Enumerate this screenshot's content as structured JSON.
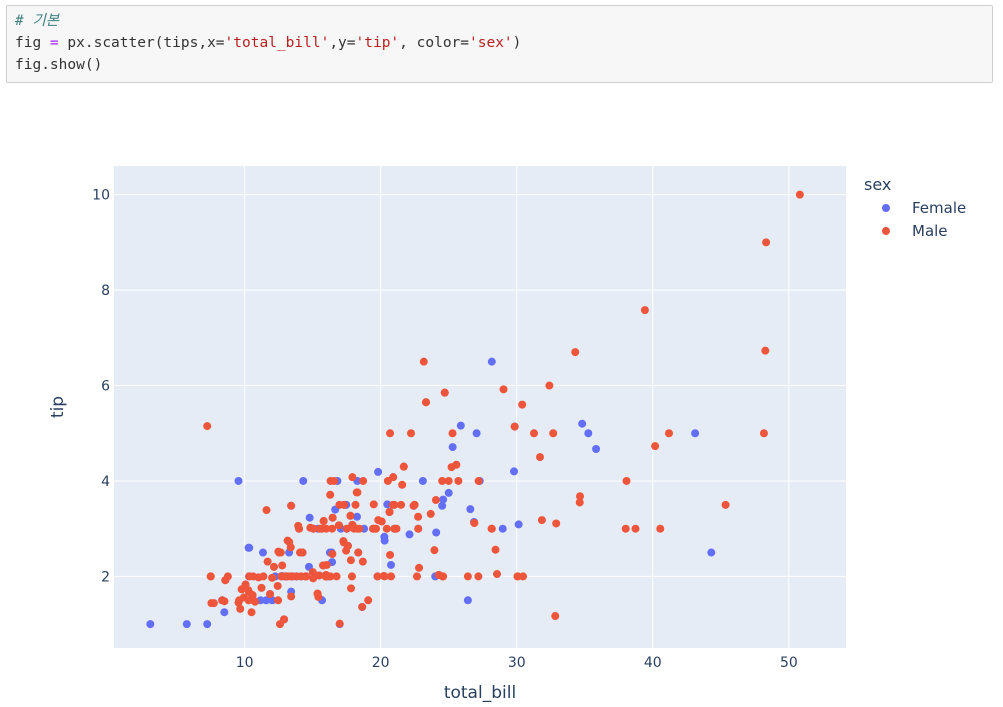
{
  "code": {
    "comment": "# 기본",
    "line2_tokens": [
      {
        "t": "fig",
        "c": "plain"
      },
      {
        "t": " = ",
        "c": "op"
      },
      {
        "t": "px.scatter(tips,x=",
        "c": "plain"
      },
      {
        "t": "'total_bill'",
        "c": "str"
      },
      {
        "t": ",y=",
        "c": "plain"
      },
      {
        "t": "'tip'",
        "c": "str"
      },
      {
        "t": ", color=",
        "c": "plain"
      },
      {
        "t": "'sex'",
        "c": "str"
      },
      {
        "t": ")",
        "c": "plain"
      }
    ],
    "line3": "fig.show()"
  },
  "chart_data": {
    "type": "scatter",
    "xlabel": "total_bill",
    "ylabel": "tip",
    "xlim": [
      0.4,
      54.2
    ],
    "ylim": [
      0.5,
      10.6
    ],
    "x_ticks": [
      10,
      20,
      30,
      40,
      50
    ],
    "y_ticks": [
      2,
      4,
      6,
      8,
      10
    ],
    "grid": true,
    "plot_bg": "#e5ecf6",
    "legend": {
      "title": "sex",
      "position": "right"
    },
    "series": [
      {
        "name": "Female",
        "color": "#636efa",
        "points": [
          [
            3.07,
            1.0
          ],
          [
            5.75,
            1.0
          ],
          [
            7.25,
            1.0
          ],
          [
            8.35,
            1.5
          ],
          [
            8.51,
            1.25
          ],
          [
            9.55,
            4.0
          ],
          [
            10.07,
            1.83
          ],
          [
            10.33,
            2.0
          ],
          [
            10.34,
            2.6
          ],
          [
            10.65,
            1.5
          ],
          [
            11.17,
            1.5
          ],
          [
            11.35,
            2.5
          ],
          [
            11.59,
            1.5
          ],
          [
            12.26,
            2.0
          ],
          [
            12.54,
            2.5
          ],
          [
            12.9,
            1.1
          ],
          [
            13.03,
            2.0
          ],
          [
            13.13,
            2.0
          ],
          [
            13.27,
            2.5
          ],
          [
            13.42,
            3.48
          ],
          [
            13.42,
            1.68
          ],
          [
            13.51,
            2.0
          ],
          [
            14.26,
            2.5
          ],
          [
            14.31,
            4.0
          ],
          [
            14.52,
            2.0
          ],
          [
            14.73,
            2.2
          ],
          [
            15.06,
            3.0
          ],
          [
            15.38,
            3.0
          ],
          [
            16.0,
            2.0
          ],
          [
            16.21,
            2.0
          ],
          [
            16.27,
            2.5
          ],
          [
            16.4,
            2.5
          ],
          [
            16.43,
            2.3
          ],
          [
            16.47,
            3.23
          ],
          [
            16.93,
            3.07
          ],
          [
            16.99,
            1.0
          ],
          [
            17.07,
            3.0
          ],
          [
            17.31,
            3.5
          ],
          [
            17.51,
            3.0
          ],
          [
            17.59,
            2.64
          ],
          [
            17.78,
            3.27
          ],
          [
            18.26,
            3.25
          ],
          [
            18.64,
            1.36
          ],
          [
            18.78,
            3.0
          ],
          [
            19.81,
            4.19
          ],
          [
            20.27,
            2.83
          ],
          [
            20.29,
            2.75
          ],
          [
            20.65,
            3.35
          ],
          [
            20.76,
            2.24
          ],
          [
            20.92,
            4.08
          ],
          [
            21.01,
            3.0
          ],
          [
            22.42,
            3.48
          ],
          [
            22.76,
            3.0
          ],
          [
            23.1,
            4.0
          ],
          [
            24.01,
            2.0
          ],
          [
            24.08,
            2.92
          ],
          [
            24.59,
            3.61
          ],
          [
            25.0,
            3.75
          ],
          [
            25.29,
            4.71
          ],
          [
            26.41,
            1.5
          ],
          [
            26.86,
            3.14
          ],
          [
            28.17,
            6.5
          ],
          [
            29.85,
            5.14
          ],
          [
            30.14,
            3.09
          ],
          [
            34.81,
            5.2
          ],
          [
            35.26,
            5.0
          ],
          [
            35.83,
            4.67
          ],
          [
            43.11,
            5.0
          ],
          [
            44.3,
            2.5
          ],
          [
            11.87,
            1.63
          ],
          [
            14.78,
            3.23
          ],
          [
            15.69,
            1.5
          ],
          [
            16.66,
            3.4
          ],
          [
            17.92,
            3.08
          ],
          [
            18.28,
            4.0
          ],
          [
            19.77,
            2.0
          ],
          [
            20.49,
            3.51
          ],
          [
            22.12,
            2.88
          ],
          [
            24.27,
            2.03
          ],
          [
            25.89,
            5.16
          ],
          [
            27.05,
            5.0
          ],
          [
            28.97,
            3.0
          ],
          [
            29.8,
            4.2
          ],
          [
            16.82,
            4.0
          ],
          [
            18.35,
            2.5
          ],
          [
            12.74,
            2.01
          ],
          [
            13.0,
            2.0
          ],
          [
            10.29,
            2.6
          ],
          [
            15.48,
            2.02
          ],
          [
            14.15,
            2.0
          ],
          [
            24.52,
            3.48
          ],
          [
            26.59,
            3.41
          ],
          [
            12.03,
            1.5
          ],
          [
            13.81,
            2.0
          ],
          [
            17.47,
            3.5
          ],
          [
            27.28,
            4.0
          ]
        ]
      },
      {
        "name": "Male",
        "color": "#ef553b",
        "points": [
          [
            7.25,
            5.15
          ],
          [
            7.51,
            2.0
          ],
          [
            7.56,
            1.44
          ],
          [
            7.74,
            1.44
          ],
          [
            8.52,
            1.48
          ],
          [
            8.58,
            1.92
          ],
          [
            8.77,
            2.0
          ],
          [
            9.6,
            1.5
          ],
          [
            9.68,
            1.32
          ],
          [
            9.78,
            1.73
          ],
          [
            9.94,
            1.56
          ],
          [
            10.27,
            1.71
          ],
          [
            10.29,
            1.5
          ],
          [
            10.33,
            1.67
          ],
          [
            10.51,
            1.25
          ],
          [
            10.59,
            1.61
          ],
          [
            10.63,
            2.0
          ],
          [
            10.77,
            1.47
          ],
          [
            11.02,
            1.98
          ],
          [
            11.24,
            1.76
          ],
          [
            11.38,
            2.0
          ],
          [
            11.61,
            3.39
          ],
          [
            11.69,
            2.31
          ],
          [
            12.02,
            1.97
          ],
          [
            12.16,
            2.2
          ],
          [
            12.46,
            1.5
          ],
          [
            12.48,
            2.52
          ],
          [
            12.6,
            1.0
          ],
          [
            12.66,
            2.5
          ],
          [
            12.69,
            2.0
          ],
          [
            12.74,
            2.0
          ],
          [
            13.0,
            2.0
          ],
          [
            13.16,
            2.75
          ],
          [
            13.37,
            2.0
          ],
          [
            13.39,
            2.61
          ],
          [
            13.42,
            1.58
          ],
          [
            13.81,
            2.0
          ],
          [
            13.94,
            3.06
          ],
          [
            14.0,
            3.0
          ],
          [
            14.07,
            2.5
          ],
          [
            14.26,
            2.5
          ],
          [
            14.48,
            2.0
          ],
          [
            14.83,
            3.02
          ],
          [
            15.01,
            2.09
          ],
          [
            15.04,
            1.96
          ],
          [
            15.36,
            1.64
          ],
          [
            15.42,
            1.57
          ],
          [
            15.48,
            2.02
          ],
          [
            15.69,
            3.0
          ],
          [
            15.77,
            2.23
          ],
          [
            15.81,
            3.16
          ],
          [
            15.98,
            2.03
          ],
          [
            16.0,
            2.0
          ],
          [
            16.29,
            3.71
          ],
          [
            16.31,
            2.0
          ],
          [
            16.45,
            2.47
          ],
          [
            16.58,
            4.0
          ],
          [
            16.93,
            3.07
          ],
          [
            17.29,
            2.71
          ],
          [
            17.46,
            2.54
          ],
          [
            17.59,
            2.64
          ],
          [
            17.81,
            2.34
          ],
          [
            17.82,
            1.75
          ],
          [
            17.92,
            4.08
          ],
          [
            18.15,
            3.5
          ],
          [
            18.24,
            3.76
          ],
          [
            18.29,
            3.0
          ],
          [
            18.43,
            3.0
          ],
          [
            18.69,
            2.31
          ],
          [
            18.71,
            4.0
          ],
          [
            19.08,
            1.5
          ],
          [
            19.44,
            3.0
          ],
          [
            19.49,
            3.51
          ],
          [
            19.65,
            3.0
          ],
          [
            19.77,
            2.0
          ],
          [
            20.08,
            3.15
          ],
          [
            20.23,
            2.01
          ],
          [
            20.45,
            3.0
          ],
          [
            20.69,
            2.45
          ],
          [
            20.9,
            3.5
          ],
          [
            21.01,
            3.5
          ],
          [
            21.16,
            3.0
          ],
          [
            21.5,
            3.5
          ],
          [
            21.58,
            3.92
          ],
          [
            21.7,
            4.3
          ],
          [
            22.23,
            5.0
          ],
          [
            22.49,
            3.5
          ],
          [
            22.67,
            2.0
          ],
          [
            22.82,
            2.18
          ],
          [
            23.17,
            6.5
          ],
          [
            23.33,
            5.65
          ],
          [
            23.68,
            3.31
          ],
          [
            24.06,
            3.6
          ],
          [
            24.27,
            2.03
          ],
          [
            24.55,
            2.0
          ],
          [
            24.71,
            5.85
          ],
          [
            25.21,
            4.29
          ],
          [
            25.28,
            5.0
          ],
          [
            25.56,
            4.34
          ],
          [
            26.88,
            3.12
          ],
          [
            27.2,
            4.0
          ],
          [
            28.15,
            3.0
          ],
          [
            28.44,
            2.56
          ],
          [
            28.55,
            2.05
          ],
          [
            29.03,
            5.92
          ],
          [
            29.85,
            5.14
          ],
          [
            30.06,
            2.0
          ],
          [
            30.4,
            5.6
          ],
          [
            30.46,
            2.0
          ],
          [
            31.27,
            5.0
          ],
          [
            31.71,
            4.5
          ],
          [
            31.85,
            3.18
          ],
          [
            32.4,
            6.0
          ],
          [
            32.68,
            5.0
          ],
          [
            32.83,
            1.17
          ],
          [
            32.9,
            3.11
          ],
          [
            34.3,
            6.7
          ],
          [
            34.63,
            3.55
          ],
          [
            34.65,
            3.68
          ],
          [
            38.01,
            3.0
          ],
          [
            38.07,
            4.0
          ],
          [
            38.73,
            3.0
          ],
          [
            39.42,
            7.58
          ],
          [
            40.17,
            4.73
          ],
          [
            40.55,
            3.0
          ],
          [
            41.19,
            5.0
          ],
          [
            45.35,
            3.5
          ],
          [
            48.17,
            5.0
          ],
          [
            48.27,
            6.73
          ],
          [
            48.33,
            9.0
          ],
          [
            50.81,
            10.0
          ],
          [
            20.65,
            3.35
          ],
          [
            18.35,
            2.5
          ],
          [
            16.04,
            2.24
          ],
          [
            14.0,
            3.0
          ],
          [
            17.78,
            3.27
          ],
          [
            24.71,
            5.85
          ],
          [
            21.7,
            4.3
          ],
          [
            26.88,
            3.12
          ],
          [
            20.92,
            4.08
          ],
          [
            12.43,
            1.8
          ],
          [
            13.28,
            2.72
          ],
          [
            16.32,
            4.0
          ],
          [
            17.92,
            3.08
          ],
          [
            19.82,
            3.18
          ],
          [
            23.95,
            2.55
          ],
          [
            27.18,
            2.0
          ],
          [
            22.75,
            3.25
          ],
          [
            15.53,
            3.0
          ],
          [
            17.26,
            2.74
          ],
          [
            11.87,
            1.63
          ],
          [
            14.15,
            2.0
          ],
          [
            15.95,
            2.0
          ],
          [
            19.65,
            3.0
          ],
          [
            16.47,
            3.23
          ],
          [
            13.42,
            3.48
          ],
          [
            10.07,
            1.83
          ],
          [
            10.34,
            2.0
          ],
          [
            9.55,
            1.45
          ],
          [
            12.9,
            1.1
          ],
          [
            8.58,
            1.92
          ],
          [
            20.53,
            4.0
          ],
          [
            16.76,
            2.0
          ],
          [
            23.33,
            5.65
          ],
          [
            15.06,
            3.0
          ],
          [
            20.69,
            5.0
          ],
          [
            25.71,
            4.0
          ],
          [
            18.29,
            3.76
          ],
          [
            17.51,
            3.0
          ],
          [
            24.59,
            2.0
          ],
          [
            28.17,
            3.0
          ],
          [
            16.99,
            1.01
          ],
          [
            20.76,
            2.0
          ],
          [
            12.76,
            2.23
          ],
          [
            14.48,
            2.0
          ],
          [
            16.97,
            3.5
          ],
          [
            22.42,
            3.48
          ],
          [
            15.77,
            2.23
          ],
          [
            18.04,
            3.0
          ],
          [
            13.51,
            2.0
          ],
          [
            15.36,
            1.64
          ],
          [
            7.51,
            2.0
          ],
          [
            10.65,
            1.5
          ],
          [
            16.0,
            3.0
          ],
          [
            30.06,
            2.0
          ],
          [
            22.76,
            3.0
          ],
          [
            13.13,
            2.0
          ],
          [
            17.89,
            2.0
          ],
          [
            14.52,
            2.0
          ],
          [
            21.01,
            3.0
          ],
          [
            25.0,
            4.0
          ],
          [
            19.44,
            3.0
          ],
          [
            26.41,
            2.0
          ],
          [
            24.52,
            4.0
          ],
          [
            15.98,
            2.0
          ],
          [
            16.43,
            3.0
          ],
          [
            8.35,
            1.5
          ],
          [
            18.64,
            1.36
          ],
          [
            22.49,
            3.5
          ],
          [
            17.31,
            3.5
          ],
          [
            15.81,
            3.16
          ],
          [
            12.54,
            2.5
          ],
          [
            20.29,
            2.0
          ]
        ]
      }
    ]
  }
}
